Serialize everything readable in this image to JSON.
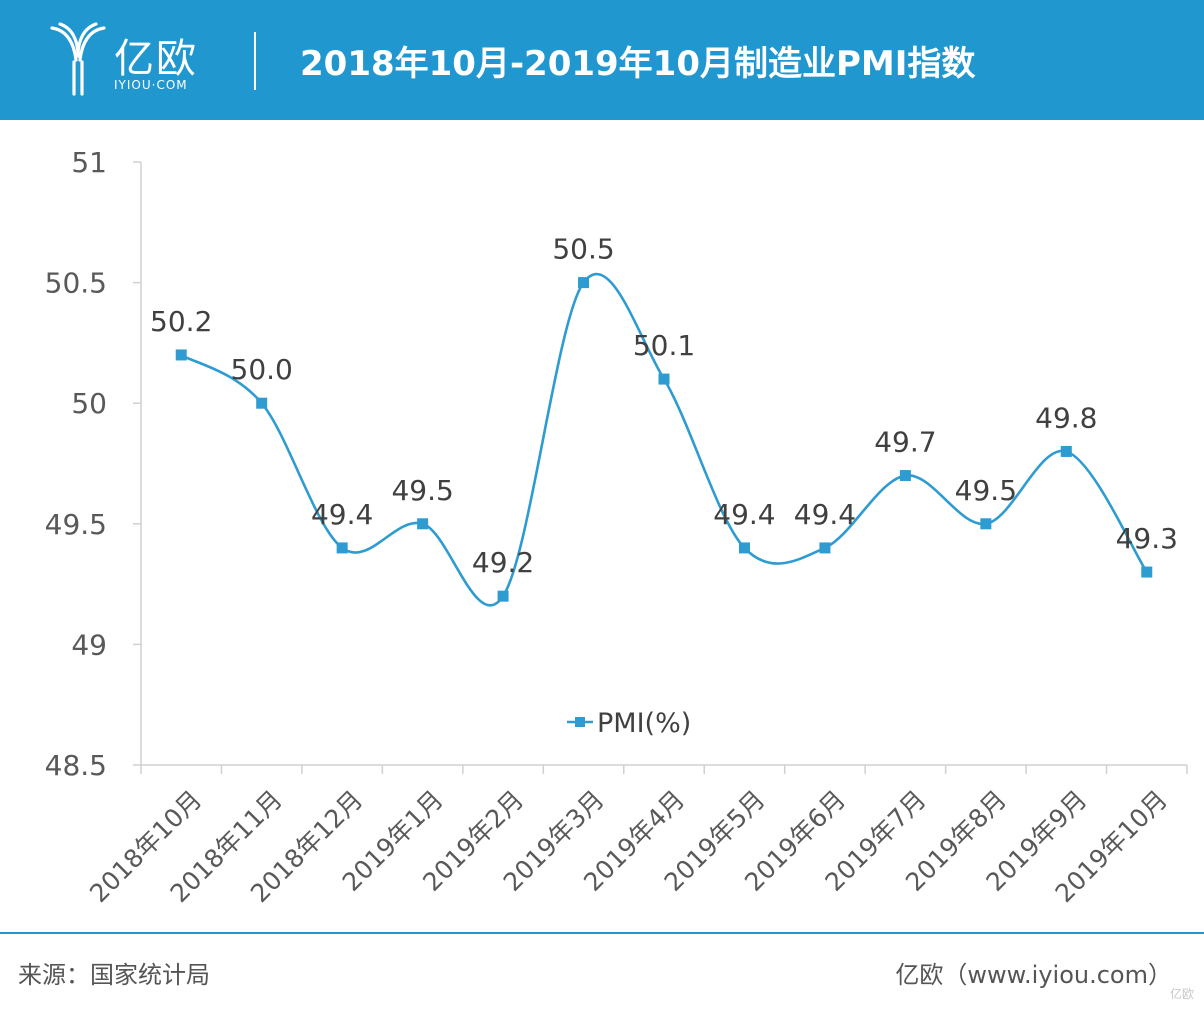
{
  "header": {
    "brand": "亿欧",
    "brand_sub": "IYIOU·COM",
    "title": "2018年10月-2019年10月制造业PMI指数",
    "background": "#2197d0"
  },
  "chart_data": {
    "type": "line",
    "categories": [
      "2018年10月",
      "2018年11月",
      "2018年12月",
      "2019年1月",
      "2019年2月",
      "2019年3月",
      "2019年4月",
      "2019年5月",
      "2019年6月",
      "2019年7月",
      "2019年8月",
      "2019年9月",
      "2019年10月"
    ],
    "series": [
      {
        "name": "PMI(%)",
        "values": [
          50.2,
          50.0,
          49.4,
          49.5,
          49.2,
          50.5,
          50.1,
          49.4,
          49.4,
          49.7,
          49.5,
          49.8,
          49.3
        ],
        "labels": [
          "50.2",
          "50.0",
          "49.4",
          "49.5",
          "49.2",
          "50.5",
          "50.1",
          "49.4",
          "49.4",
          "49.7",
          "49.5",
          "49.8",
          "49.3"
        ],
        "color": "#2e9bd1"
      }
    ],
    "yticks": [
      "51",
      "50.5",
      "50",
      "49.5",
      "49",
      "48.5"
    ],
    "ylim": [
      48.5,
      51
    ],
    "grid": false,
    "smooth": true,
    "marker": "square",
    "legend_position": "bottom-center"
  },
  "footer": {
    "source": "来源：国家统计局",
    "credit": "亿欧（www.iyiou.com）",
    "watermark": "亿欧"
  }
}
